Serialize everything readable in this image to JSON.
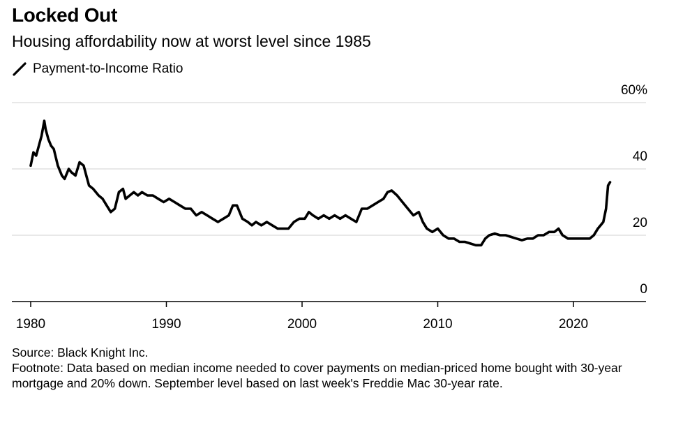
{
  "header": {
    "title": "Locked Out",
    "subtitle": "Housing affordability now at worst level since 1985"
  },
  "footer": {
    "source": "Source: Black Knight Inc.",
    "footnote": "Footnote: Data based on median income needed to cover payments on median-priced home bought with 30-year mortgage and 20% down. September level based on last week's Freddie Mac 30-year rate."
  },
  "colors": {
    "line": "#000000",
    "grid": "#d9d9d9",
    "axis": "#000000"
  },
  "chart_data": {
    "type": "line",
    "title": "Locked Out",
    "subtitle": "Housing affordability now at worst level since 1985",
    "xlim": [
      1980,
      2025
    ],
    "ylim": [
      0,
      60
    ],
    "y_ticks": [
      0,
      20,
      40,
      60
    ],
    "y_tick_labels": [
      "0",
      "20",
      "40",
      "60%"
    ],
    "x_ticks": [
      1980,
      1990,
      2000,
      2010,
      2020
    ],
    "x_tick_labels": [
      "1980",
      "1990",
      "2000",
      "2010",
      "2020"
    ],
    "grid": true,
    "legend_position": "top-left",
    "series": [
      {
        "name": "Payment-to-Income Ratio",
        "x": [
          1980.0,
          1980.2,
          1980.4,
          1980.6,
          1980.8,
          1981.0,
          1981.1,
          1981.3,
          1981.5,
          1981.7,
          1982.0,
          1982.3,
          1982.5,
          1982.8,
          1983.0,
          1983.3,
          1983.6,
          1983.9,
          1984.1,
          1984.3,
          1984.6,
          1985.0,
          1985.3,
          1985.6,
          1985.9,
          1986.2,
          1986.5,
          1986.8,
          1987.0,
          1987.3,
          1987.6,
          1987.9,
          1988.2,
          1988.6,
          1989.0,
          1989.4,
          1989.8,
          1990.2,
          1990.6,
          1991.0,
          1991.4,
          1991.8,
          1992.2,
          1992.6,
          1993.0,
          1993.4,
          1993.8,
          1994.2,
          1994.6,
          1994.9,
          1995.2,
          1995.6,
          1996.0,
          1996.3,
          1996.6,
          1997.0,
          1997.4,
          1997.8,
          1998.2,
          1998.6,
          1999.0,
          1999.4,
          1999.8,
          2000.2,
          2000.5,
          2000.8,
          2001.2,
          2001.6,
          2002.0,
          2002.4,
          2002.8,
          2003.2,
          2003.6,
          2004.0,
          2004.4,
          2004.8,
          2005.2,
          2005.6,
          2006.0,
          2006.3,
          2006.6,
          2007.0,
          2007.4,
          2007.8,
          2008.2,
          2008.6,
          2008.9,
          2009.2,
          2009.6,
          2010.0,
          2010.4,
          2010.8,
          2011.2,
          2011.6,
          2012.0,
          2012.4,
          2012.8,
          2013.2,
          2013.5,
          2013.8,
          2014.2,
          2014.6,
          2015.0,
          2015.4,
          2015.8,
          2016.2,
          2016.6,
          2017.0,
          2017.4,
          2017.8,
          2018.2,
          2018.6,
          2018.9,
          2019.2,
          2019.6,
          2020.0,
          2020.4,
          2020.8,
          2021.2,
          2021.5,
          2021.8,
          2022.0,
          2022.2,
          2022.4,
          2022.55,
          2022.7
        ],
        "values": [
          41,
          45,
          44,
          47,
          50,
          54.5,
          52,
          49,
          47,
          46,
          41,
          38,
          37,
          40,
          39,
          38,
          42,
          41,
          38,
          35,
          34,
          32,
          31,
          29,
          27,
          28,
          33,
          34,
          31,
          32,
          33,
          32,
          33,
          32,
          32,
          31,
          30,
          31,
          30,
          29,
          28,
          28,
          26,
          27,
          26,
          25,
          24,
          25,
          26,
          29,
          29,
          25,
          24,
          23,
          24,
          23,
          24,
          23,
          22,
          22,
          22,
          24,
          25,
          25,
          27,
          26,
          25,
          26,
          25,
          26,
          25,
          26,
          25,
          24,
          28,
          28,
          29,
          30,
          31,
          33,
          33.5,
          32,
          30,
          28,
          26,
          27,
          24,
          22,
          21,
          22,
          20,
          19,
          19,
          18,
          18,
          17.5,
          17,
          17,
          19,
          20,
          20.5,
          20,
          20,
          19.5,
          19,
          18.5,
          19,
          19,
          20,
          20,
          21,
          21,
          22,
          20,
          19,
          19,
          19,
          19,
          19,
          20,
          22,
          23,
          24,
          28,
          35,
          36
        ]
      }
    ]
  }
}
